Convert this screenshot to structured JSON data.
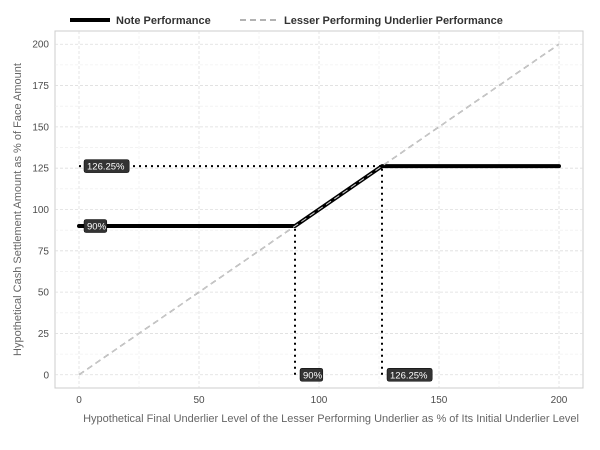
{
  "chart_data": {
    "type": "line",
    "xlabel": "Hypothetical Final Underlier Level of the Lesser Performing Underlier as % of Its Initial Underlier Level",
    "ylabel": "Hypothetical Cash Settlement Amount as % of Face Amount",
    "xlim": [
      -10,
      210
    ],
    "ylim": [
      -8,
      208
    ],
    "x_ticks": [
      0,
      50,
      100,
      150,
      200
    ],
    "y_ticks": [
      0,
      25,
      50,
      75,
      100,
      125,
      150,
      175,
      200
    ],
    "grid": true,
    "legend_position": "top",
    "series": [
      {
        "name": "Note Performance",
        "style": "solid-thick",
        "color": "#000000",
        "x": [
          0,
          90,
          126.25,
          200
        ],
        "y": [
          90,
          90,
          126.25,
          126.25
        ]
      },
      {
        "name": "Lesser Performing Underlier Performance",
        "style": "dashed",
        "color": "#999999",
        "x": [
          0,
          200
        ],
        "y": [
          0,
          200
        ]
      }
    ],
    "reference_lines": [
      {
        "orientation": "horizontal",
        "value": 126.25,
        "from": 0,
        "to": 126.25
      },
      {
        "orientation": "vertical",
        "value": 90,
        "from": 0,
        "to": 90
      },
      {
        "orientation": "vertical",
        "value": 126.25,
        "from": 0,
        "to": 126.25
      }
    ],
    "annotations": [
      {
        "text": "126.25%",
        "x": 0,
        "y": 126.25
      },
      {
        "text": "90%",
        "x": 0,
        "y": 90
      },
      {
        "text": "90%",
        "x": 90,
        "y": 0
      },
      {
        "text": "126.25%",
        "x": 126.25,
        "y": 0
      }
    ]
  }
}
